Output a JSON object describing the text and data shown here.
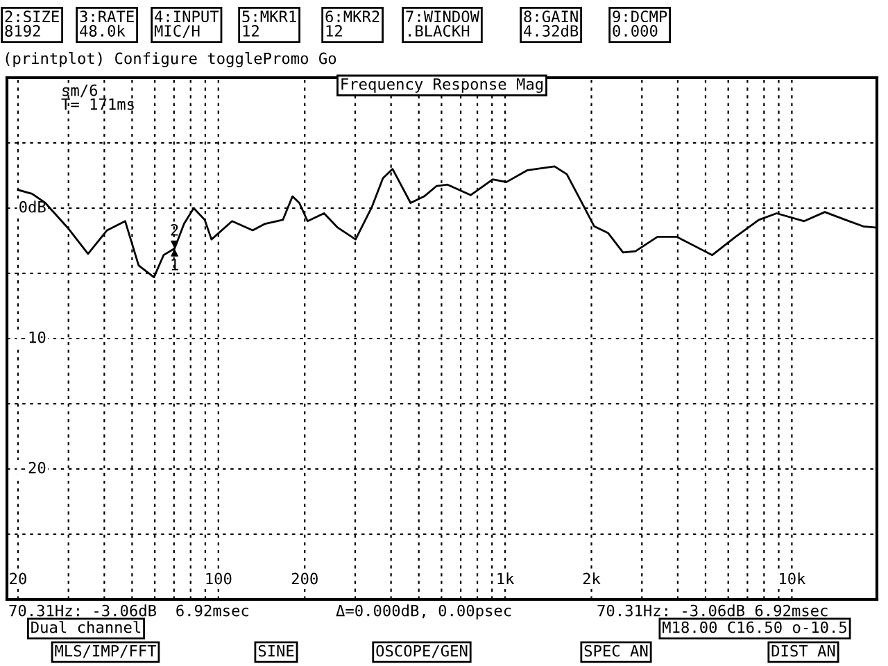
{
  "chart_data": {
    "type": "line",
    "title": "Frequency Response Mag",
    "x": [
      20,
      22.4,
      24.9,
      29.8,
      35.1,
      40.9,
      47.3,
      52.7,
      59.6,
      64.4,
      70.31,
      75.9,
      82,
      89.6,
      94.6,
      111.6,
      131.7,
      145.5,
      167.8,
      181.3,
      191.5,
      204.6,
      233.6,
      260.8,
      300.9,
      343.2,
      375,
      405,
      468,
      522,
      577,
      630,
      759,
      905,
      1011,
      1194,
      1487,
      1641,
      1833,
      2046,
      2284,
      2578,
      2849,
      3398,
      3964,
      5277,
      6363,
      7674,
      8851,
      11040,
      13030,
      15380,
      17750,
      19800
    ],
    "series": [
      {
        "color": "#000000",
        "values": [
          1.4,
          1.1,
          0.4,
          -1.5,
          -3.5,
          -1.7,
          -1.0,
          -4.4,
          -5.3,
          -3.6,
          -3.1,
          -1.2,
          0.0,
          -0.9,
          -2.4,
          -1.0,
          -1.7,
          -1.2,
          -0.9,
          0.9,
          0.4,
          -1.0,
          -0.4,
          -1.5,
          -2.4,
          0.1,
          2.3,
          3.0,
          0.4,
          0.9,
          1.7,
          1.8,
          1.0,
          2.2,
          2.0,
          2.9,
          3.2,
          2.6,
          0.6,
          -1.4,
          -1.9,
          -3.4,
          -3.3,
          -2.2,
          -2.2,
          -3.6,
          -2.2,
          -0.9,
          -0.4,
          -1.0,
          -0.3,
          -0.9,
          -1.4,
          -1.5
        ]
      }
    ],
    "log": "x",
    "xlim": [
      18.3,
      19800
    ],
    "ylim": [
      -30,
      10
    ],
    "xticks": [
      {
        "value": 20,
        "label": "20"
      },
      {
        "value": 30,
        "label": null
      },
      {
        "value": 40,
        "label": null
      },
      {
        "value": 50,
        "label": null
      },
      {
        "value": 60,
        "label": null
      },
      {
        "value": 70,
        "label": null
      },
      {
        "value": 80,
        "label": null
      },
      {
        "value": 90,
        "label": null
      },
      {
        "value": 100,
        "label": "100"
      },
      {
        "value": 200,
        "label": "200"
      },
      {
        "value": 300,
        "label": null
      },
      {
        "value": 400,
        "label": null
      },
      {
        "value": 500,
        "label": null
      },
      {
        "value": 600,
        "label": null
      },
      {
        "value": 700,
        "label": null
      },
      {
        "value": 800,
        "label": null
      },
      {
        "value": 900,
        "label": null
      },
      {
        "value": 1000,
        "label": "1k"
      },
      {
        "value": 2000,
        "label": "2k"
      },
      {
        "value": 3000,
        "label": null
      },
      {
        "value": 4000,
        "label": null
      },
      {
        "value": 5000,
        "label": null
      },
      {
        "value": 6000,
        "label": null
      },
      {
        "value": 7000,
        "label": null
      },
      {
        "value": 8000,
        "label": null
      },
      {
        "value": 9000,
        "label": null
      },
      {
        "value": 10000,
        "label": "10k"
      }
    ],
    "yticks": [
      {
        "value": -30,
        "label": null
      },
      {
        "value": -25,
        "label": null
      },
      {
        "value": -20,
        "label": "-20"
      },
      {
        "value": -15,
        "label": null
      },
      {
        "value": -10,
        "label": "-10"
      },
      {
        "value": -5,
        "label": null
      },
      {
        "value": 0,
        "label": "0dB"
      },
      {
        "value": 5,
        "label": null
      },
      {
        "value": 10,
        "label": null
      }
    ],
    "grid": true,
    "marker": "none",
    "line_style": "solid",
    "annotations": [
      "2:SIZE\n8192",
      "3:RATE\n48.0k",
      "4:INPUT\nMIC/H",
      "5:MKR1\n12",
      "6:MKR2\n12",
      "7:WINDOW\n.BLACKH",
      "8:GAIN\n4.32dB",
      "9:DCMP\n0.000",
      "(printplot) Configure togglePromo Go",
      "sm/6",
      "T= 171ms",
      "70.31Hz: -3.06dB  6.92msec",
      "Δ=0.000dB, 0.00psec",
      "70.31Hz: -3.06dB 6.92msec",
      "Dual channel",
      "M18.00 C16.50 o-10.5",
      "MLS/IMP/FFT",
      "SINE",
      "OSCOPE/GEN",
      "SPEC AN",
      "DIST AN",
      {
        "text": "1",
        "x": 70.31,
        "y": -3.1
      },
      {
        "text": "2",
        "x": 70.31,
        "y": -3.1
      }
    ]
  }
}
